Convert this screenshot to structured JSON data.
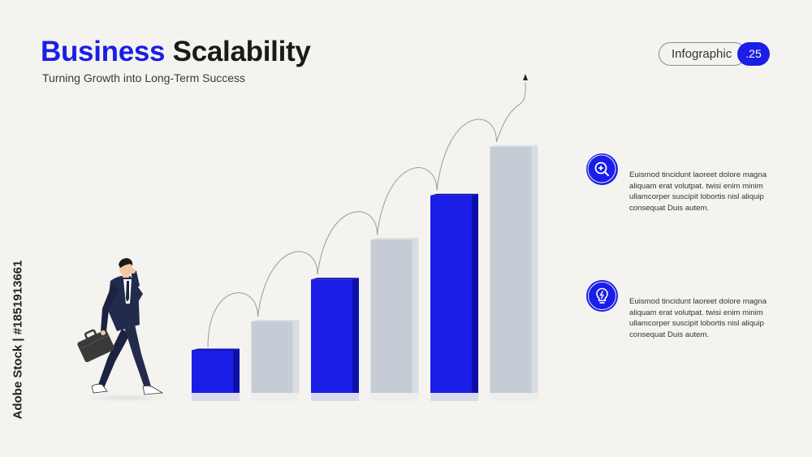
{
  "header": {
    "title_accent": "Business",
    "title_rest": "Scalability",
    "subtitle": "Turning Growth into Long-Term Success"
  },
  "tag": {
    "label": "Infographic",
    "number": ".25"
  },
  "colors": {
    "accent": "#1a1ee6",
    "accent_dark": "#0d10a8",
    "bar_gray": "#c5ccd6",
    "bar_gray_side": "#d8dde4",
    "background": "#f4f3ef"
  },
  "info_items": [
    {
      "icon": "zoom-in-icon",
      "text": "Euismod tincidunt laoreet dolore magna aliquam erat volutpat. twisi enim minim ullamcorper suscipit lobortis nisl aliquip consequat Duis autem."
    },
    {
      "icon": "lightbulb-icon",
      "text": "Euismod tincidunt laoreet dolore magna aliquam erat volutpat. twisi enim minim ullamcorper suscipit lobortis nisl aliquip consequat Duis autem."
    }
  ],
  "chart_data": {
    "type": "bar",
    "title": "",
    "xlabel": "",
    "ylabel": "",
    "values": [
      1,
      1.65,
      2.6,
      3.5,
      4.5,
      5.6
    ],
    "colors": [
      "accent",
      "gray",
      "accent",
      "gray",
      "accent",
      "gray"
    ]
  },
  "credit": "Adobe Stock | #1851913661"
}
